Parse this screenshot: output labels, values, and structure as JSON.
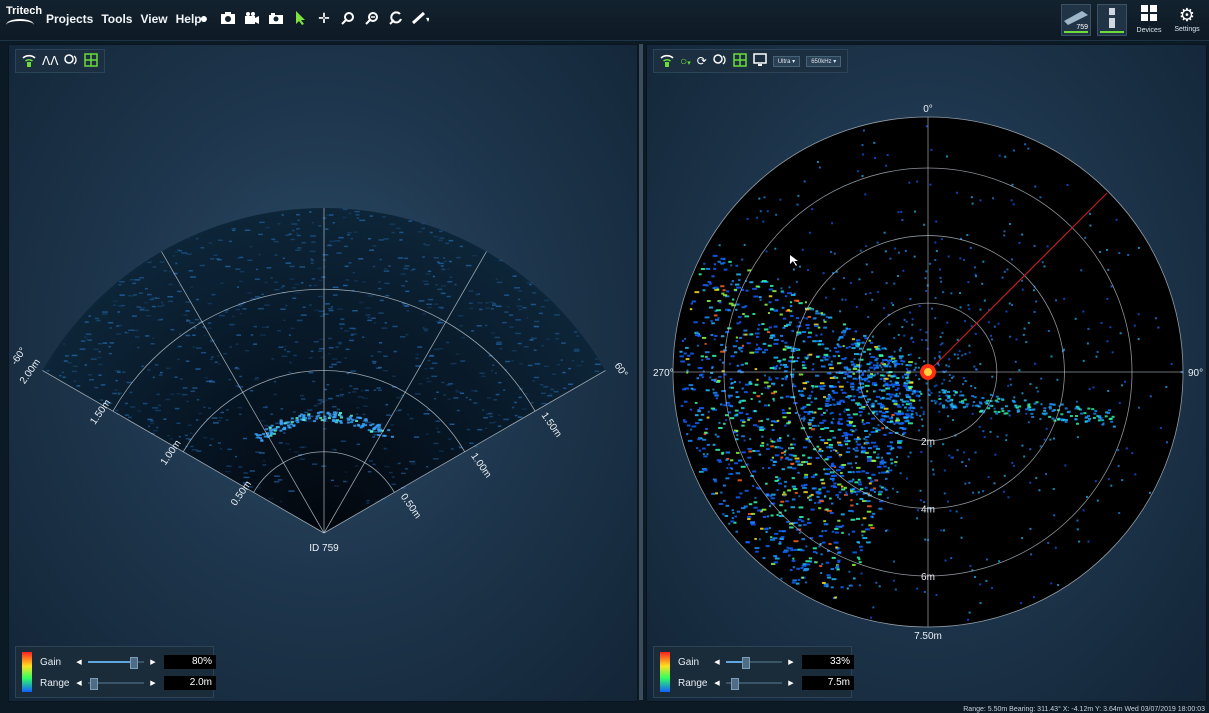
{
  "app": {
    "logo_text": "Tritech"
  },
  "menu": [
    "Projects",
    "Tools",
    "View",
    "Help"
  ],
  "toolbar_icons": [
    "record-icon",
    "camera-icon",
    "video-camera-icon",
    "screen-capture-icon",
    "pointer-icon",
    "pan-icon",
    "zoom-in-icon",
    "zoom-out-icon",
    "reset-zoom-icon",
    "measure-icon"
  ],
  "topright": {
    "device_thumb_label": "759",
    "devices_label": "Devices",
    "settings_label": "Settings"
  },
  "left_panel": {
    "sonar_id": "ID 759",
    "angle_labels": [
      "-60°",
      "60°"
    ],
    "range_labels": [
      "0.50m",
      "1.00m",
      "1.50m",
      "2.00m"
    ],
    "gain": {
      "label": "Gain",
      "value": "80%",
      "fraction": 0.8
    },
    "range": {
      "label": "Range",
      "value": "2.0m",
      "fraction": 0.05
    }
  },
  "right_panel": {
    "bearing_labels": [
      "0°",
      "90°",
      "270°"
    ],
    "range_labels": [
      "2m",
      "4m",
      "6m",
      "7.50m"
    ],
    "mode_select": "Ultra",
    "freq_select": "650kHz",
    "gain": {
      "label": "Gain",
      "value": "33%",
      "fraction": 0.33
    },
    "range": {
      "label": "Range",
      "value": "7.5m",
      "fraction": 0.1
    }
  },
  "status_bar": "Range: 5.50m Bearing: 311.43° X:   -4.12m Y:    3.64m Wed 03/07/2019 18:00:03",
  "colors": {
    "accent_green": "#6cdc3a",
    "panel_bg": "#1c3349",
    "bearing_line": "#c02020"
  }
}
